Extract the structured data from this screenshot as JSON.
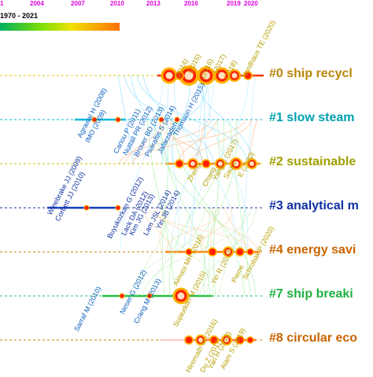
{
  "timeline": {
    "range_label": "1970 - 2021",
    "years": [
      "1",
      "2004",
      "2007",
      "2010",
      "2013",
      "2016",
      "2019",
      "2020"
    ]
  },
  "clusters": [
    {
      "label": "#0 ship recycl",
      "color": "#b8860b"
    },
    {
      "label": "#1 slow steam",
      "color": "#00a0b0"
    },
    {
      "label": "#2 sustainable",
      "color": "#a0a000"
    },
    {
      "label": "#3 analytical m",
      "color": "#1030a0"
    },
    {
      "label": "#4 energy savi",
      "color": "#c86400"
    },
    {
      "label": "#7 ship breaki",
      "color": "#20b040"
    },
    {
      "label": "#8 circular eco",
      "color": "#c86400"
    }
  ],
  "authors": [
    {
      "text": "Agrawal H (2008)",
      "color": "#1060c0"
    },
    {
      "text": "IMO (2009)",
      "color": "#1060c0"
    },
    {
      "text": "Cariou P (2011)",
      "color": "#1060c0"
    },
    {
      "text": "Nuttall PR (2012)",
      "color": "#1060c0"
    },
    {
      "text": "Brouer BD (2013)",
      "color": "#1060c0"
    },
    {
      "text": "Psaraftis S (2014)",
      "color": "#1060c0"
    },
    {
      "text": "Jafarzadeh",
      "color": "#1060c0"
    },
    {
      "text": "Thomson H (2015)",
      "color": "#1060c0"
    },
    {
      "text": "(2014)",
      "color": "#b8a000"
    },
    {
      "text": "(2015)",
      "color": "#b8a000"
    },
    {
      "text": "(2016)",
      "color": "#b8a000"
    },
    {
      "text": "(2017)",
      "color": "#b8a000"
    },
    {
      "text": "(2018)",
      "color": "#b8a000"
    },
    {
      "text": "Nordhaus TE (2020)",
      "color": "#b8a000"
    },
    {
      "text": "Winebrake JJ (2009)",
      "color": "#1030a0"
    },
    {
      "text": "Corbett JJ (2010)",
      "color": "#1030a0"
    },
    {
      "text": "Buyukozkan G (2012)",
      "color": "#1030a0"
    },
    {
      "text": "Lack DA (2012)",
      "color": "#1030a0"
    },
    {
      "text": "Kim JG (2013)",
      "color": "#1030a0"
    },
    {
      "text": "Lam JSL (2014)",
      "color": "#1030a0"
    },
    {
      "text": "Yin JB (2014)",
      "color": "#1030a0"
    },
    {
      "text": "Zheng",
      "color": "#b8a000"
    },
    {
      "text": "Chang",
      "color": "#b8a000"
    },
    {
      "text": "Yang C (2017)",
      "color": "#b8a000"
    },
    {
      "text": "Sauce",
      "color": "#b8a000"
    },
    {
      "text": "E (2020)",
      "color": "#b8a000"
    },
    {
      "text": "Almasi MH (2016)",
      "color": "#b8a000"
    },
    {
      "text": "Yin R (2017)",
      "color": "#b8a000"
    },
    {
      "text": "Pierre",
      "color": "#b8a000"
    },
    {
      "text": "Schrobak P (2020)",
      "color": "#b8a000"
    },
    {
      "text": "Sarraf M (2010)",
      "color": "#1060c0"
    },
    {
      "text": "Neser G (2012)",
      "color": "#1060c0"
    },
    {
      "text": "Crang M (2013)",
      "color": "#1060c0"
    },
    {
      "text": "Sujauddin M (2015)",
      "color": "#b8a000"
    },
    {
      "text": "Hiremath M (2016)",
      "color": "#b8a000"
    },
    {
      "text": "Du Z (2017)",
      "color": "#b8a000"
    },
    {
      "text": "Yan H (2018)",
      "color": "#b8a000"
    },
    {
      "text": "Alam S (2019)",
      "color": "#b8a000"
    }
  ]
}
